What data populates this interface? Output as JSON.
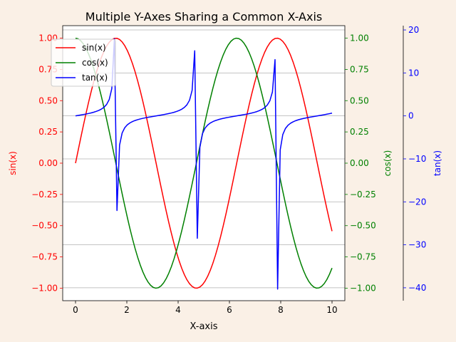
{
  "chart_data": {
    "type": "line",
    "title": "Multiple Y-Axes Sharing a Common X-Axis",
    "xlabel": "X-axis",
    "xlim": [
      -0.5,
      10.5
    ],
    "xticks": [
      0,
      2,
      4,
      6,
      8,
      10
    ],
    "grid": "horizontal",
    "legend": "top-left",
    "background": "#faf0e6",
    "axes": [
      {
        "id": "y1",
        "label": "sin(x)",
        "side": "left",
        "color": "#ff0000",
        "lim": [
          -1.1,
          1.1
        ],
        "ticks": [
          -1.0,
          -0.75,
          -0.5,
          -0.25,
          0.0,
          0.25,
          0.5,
          0.75,
          1.0
        ],
        "tick_format": "2"
      },
      {
        "id": "y2",
        "label": "cos(x)",
        "side": "right",
        "color": "#008000",
        "lim": [
          -1.1,
          1.1
        ],
        "ticks": [
          -1.0,
          -0.75,
          -0.5,
          -0.25,
          0.0,
          0.25,
          0.5,
          0.75,
          1.0
        ],
        "tick_format": "2"
      },
      {
        "id": "y3",
        "label": "tan(x)",
        "side": "right-outer",
        "color": "#0000ff",
        "lim": [
          -43.0,
          21.0
        ],
        "ticks": [
          -40,
          -30,
          -20,
          -10,
          0,
          10,
          20
        ],
        "tick_format": "0"
      }
    ],
    "series": [
      {
        "name": "sin(x)",
        "axis": "y1",
        "color": "#ff0000",
        "function": "sin",
        "x_start": 0,
        "x_end": 10,
        "points": 100
      },
      {
        "name": "cos(x)",
        "axis": "y2",
        "color": "#008000",
        "function": "cos",
        "x_start": 0,
        "x_end": 10,
        "points": 100
      },
      {
        "name": "tan(x)",
        "axis": "y3",
        "color": "#0000ff",
        "function": "tan",
        "x_start": 0,
        "x_end": 10,
        "points": 100
      }
    ]
  }
}
